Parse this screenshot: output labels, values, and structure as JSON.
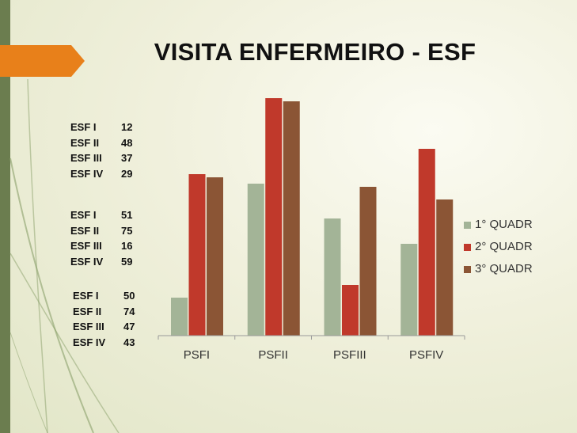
{
  "title": "VISITA ENFERMEIRO - ESF",
  "stats": [
    [
      {
        "label": "ESF I",
        "value": "12"
      },
      {
        "label": "ESF II",
        "value": "48"
      },
      {
        "label": "ESF III",
        "value": "37"
      },
      {
        "label": "ESF IV",
        "value": "29"
      }
    ],
    [
      {
        "label": "ESF I",
        "value": "51"
      },
      {
        "label": "ESF II",
        "value": "75"
      },
      {
        "label": "ESF III",
        "value": "16"
      },
      {
        "label": "ESF IV",
        "value": "59"
      }
    ],
    [
      {
        "label": "ESF I",
        "value": "50"
      },
      {
        "label": "ESF II",
        "value": "74"
      },
      {
        "label": "ESF III",
        "value": "47"
      },
      {
        "label": "ESF IV",
        "value": "43"
      }
    ]
  ],
  "chart_data": {
    "type": "bar",
    "categories": [
      "PSFI",
      "PSFII",
      "PSFIII",
      "PSFIV"
    ],
    "series": [
      {
        "name": "1° QUADR",
        "values": [
          12,
          48,
          37,
          29
        ],
        "color": "#a3b497"
      },
      {
        "name": "2° QUADR",
        "values": [
          51,
          75,
          16,
          59
        ],
        "color": "#c0392b"
      },
      {
        "name": "3° QUADR",
        "values": [
          50,
          74,
          47,
          43
        ],
        "color": "#8b5535"
      }
    ],
    "ylim": [
      0,
      80
    ],
    "grid": false,
    "legend": "right"
  }
}
